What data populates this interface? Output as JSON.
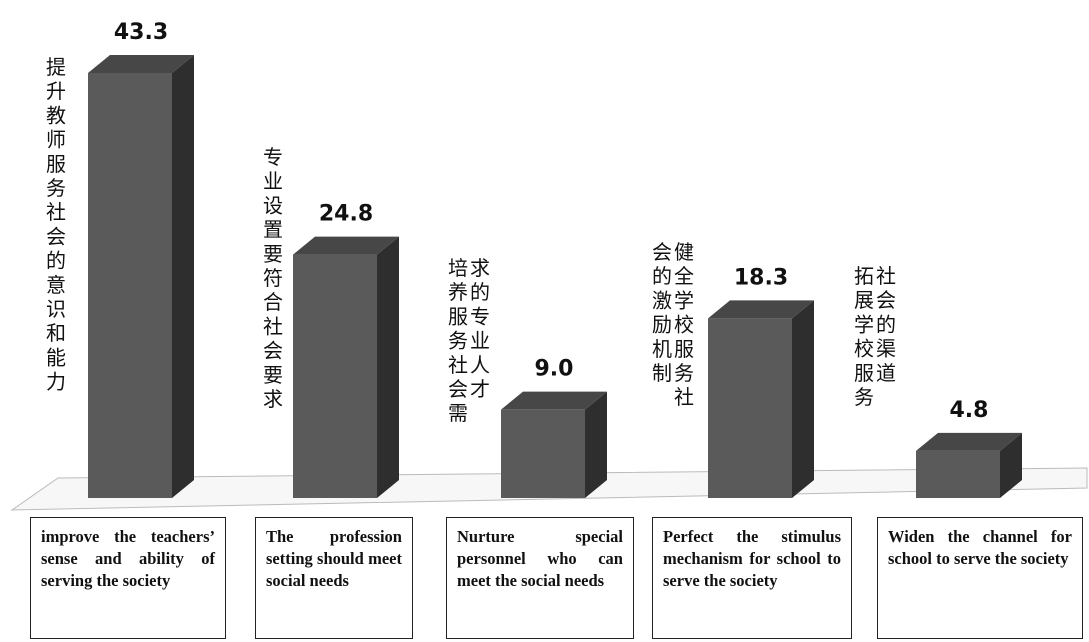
{
  "chart_data": {
    "type": "bar",
    "categories": [
      "improve the teachers’ sense and ability of serving the society",
      "The profession setting should meet social needs",
      "Nurture special personnel who can meet the social needs",
      "Perfect the stimulus mechanism for school to serve the society",
      "Widen the channel for school to serve the society"
    ],
    "category_labels_zh": [
      "提升教师服务社会的意识和能力",
      "专业设置要符合社会要求",
      "培养服务社会需求的专业人才",
      "健全学校服务社会的激励机制",
      "拓展学校服务社会的渠道"
    ],
    "values": [
      43.3,
      24.8,
      9.0,
      18.3,
      4.8
    ],
    "value_labels": [
      "43.3",
      "24.8",
      "9.0",
      "18.3",
      "4.8"
    ],
    "ylim": [
      0,
      45
    ],
    "grid": false,
    "legend": "none",
    "style": "3d-column",
    "colors": {
      "front": "#5a5a5a",
      "side": "#2e2e2e",
      "top": "#474747",
      "floor": "#f7f7f7"
    }
  }
}
